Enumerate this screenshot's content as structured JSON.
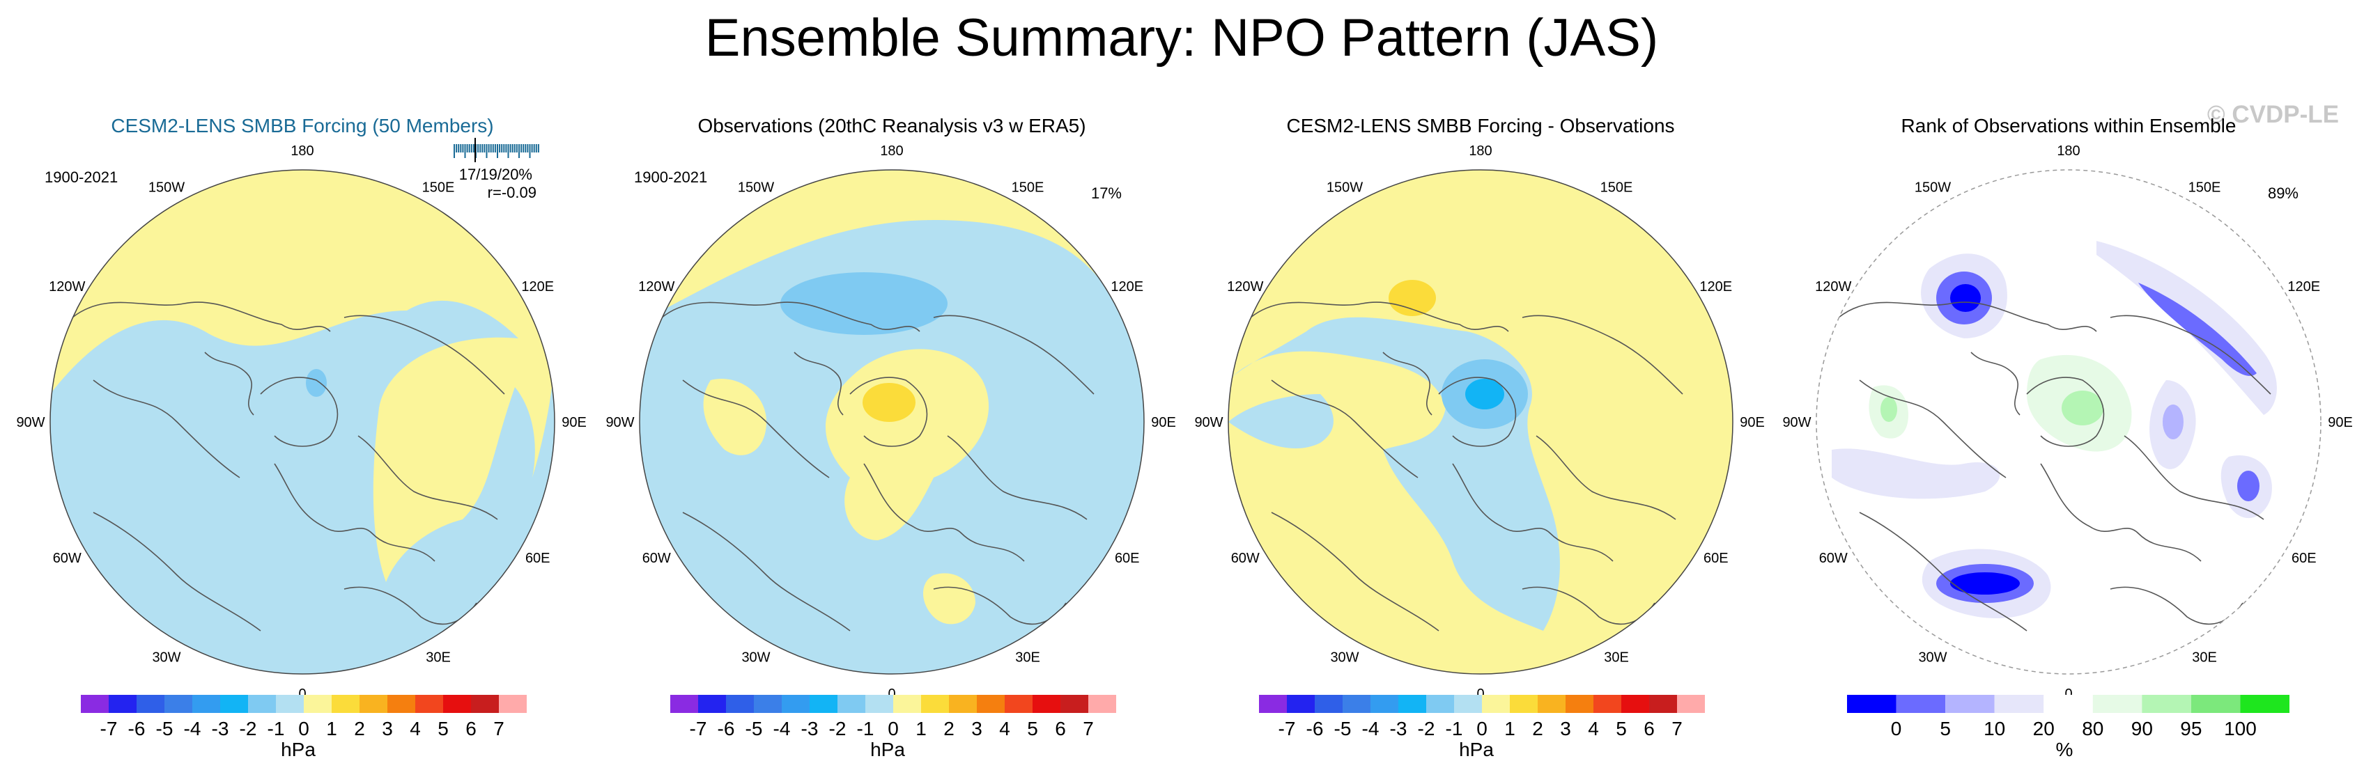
{
  "figure": {
    "title": "Ensemble Summary: NPO Pattern (JAS)",
    "watermark": "© CVDP-LE"
  },
  "chart_data": [
    {
      "type": "heatmap",
      "projection": "north polar stereographic",
      "title": "CESM2-LENS SMBB Forcing (50 Members)",
      "period": "1900-2021",
      "rank_text": "17/19/20%",
      "corr_text": "r=-0.09",
      "lon_labels": [
        "180",
        "150E",
        "120E",
        "90E",
        "60E",
        "30E",
        "0",
        "30W",
        "60W",
        "90W",
        "120W",
        "150W"
      ],
      "colorbar": {
        "unit": "hPa",
        "tick_labels": [
          "-7",
          "-6",
          "-5",
          "-4",
          "-3",
          "-2",
          "-1",
          "0",
          "1",
          "2",
          "3",
          "4",
          "5",
          "6",
          "7"
        ]
      }
    },
    {
      "type": "heatmap",
      "projection": "north polar stereographic",
      "title": "Observations (20thC Reanalysis v3 w ERA5)",
      "period": "1900-2021",
      "pct_text": "17%",
      "lon_labels": [
        "180",
        "150E",
        "120E",
        "90E",
        "60E",
        "30E",
        "0",
        "30W",
        "60W",
        "90W",
        "120W",
        "150W"
      ],
      "colorbar": {
        "unit": "hPa",
        "tick_labels": [
          "-7",
          "-6",
          "-5",
          "-4",
          "-3",
          "-2",
          "-1",
          "0",
          "1",
          "2",
          "3",
          "4",
          "5",
          "6",
          "7"
        ]
      }
    },
    {
      "type": "heatmap",
      "projection": "north polar stereographic",
      "title": "CESM2-LENS SMBB Forcing - Observations",
      "lon_labels": [
        "180",
        "150E",
        "120E",
        "90E",
        "60E",
        "30E",
        "0",
        "30W",
        "60W",
        "90W",
        "120W",
        "150W"
      ],
      "colorbar": {
        "unit": "hPa",
        "tick_labels": [
          "-7",
          "-6",
          "-5",
          "-4",
          "-3",
          "-2",
          "-1",
          "0",
          "1",
          "2",
          "3",
          "4",
          "5",
          "6",
          "7"
        ]
      }
    },
    {
      "type": "heatmap",
      "projection": "north polar stereographic",
      "title": "Rank of Observations within Ensemble",
      "pct_text": "89%",
      "lon_labels": [
        "180",
        "150E",
        "120E",
        "90E",
        "60E",
        "30E",
        "0",
        "30W",
        "60W",
        "90W",
        "120W",
        "150W"
      ],
      "colorbar": {
        "unit": "%",
        "tick_labels": [
          "0",
          "5",
          "10",
          "20",
          "80",
          "90",
          "95",
          "100"
        ]
      }
    }
  ],
  "colors": {
    "diverging": [
      "#8a2be2",
      "#2323f0",
      "#2f5fe8",
      "#3b7fe8",
      "#339cf0",
      "#12b4f5",
      "#7fcaf2",
      "#b3e0f2",
      "#fbf59a",
      "#fbdc3a",
      "#f9b320",
      "#f57f0f",
      "#f2461e",
      "#e60f0f",
      "#c81e1e",
      "#ffaaaa"
    ],
    "rank": [
      "#0000ff",
      "#6b6bff",
      "#b4b4ff",
      "#e6e6fa",
      "#ffffff",
      "#e6fae6",
      "#b4f5b4",
      "#7ce87c",
      "#1ee61e"
    ],
    "title_blue": "#1a6b96"
  }
}
